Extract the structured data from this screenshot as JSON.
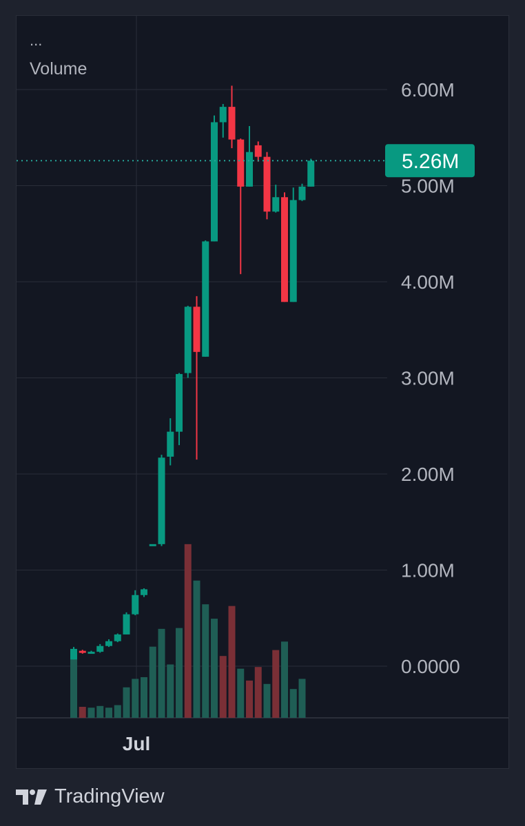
{
  "legend": {
    "dots": "...",
    "title": "Volume"
  },
  "brand": {
    "name": "TradingView",
    "logo_icon": "tradingview-logo-icon"
  },
  "colors": {
    "background": "#131722",
    "outer": "#1e222d",
    "grid": "#2a2e39",
    "up": "#089981",
    "down": "#f23645",
    "volume_up": "#1f5e55",
    "volume_down": "#7a2f36",
    "axis_text": "#b2b5be",
    "price_line": "#26a69a",
    "last_badge": "#089981"
  },
  "chart_data": {
    "type": "candlestick",
    "title": "",
    "y_axis": {
      "ticks": [
        6000000,
        5000000,
        4000000,
        3000000,
        2000000,
        1000000,
        0
      ],
      "tick_labels": [
        "6.00M",
        "5.00M",
        "4.00M",
        "3.00M",
        "2.00M",
        "1.00M",
        "0.0000"
      ],
      "ylim": [
        -540000,
        6240000
      ],
      "position": "right"
    },
    "x_axis": {
      "tick_labels": [
        "Jul"
      ]
    },
    "grid": true,
    "last_value": 5260000,
    "last_value_label": "5.26M",
    "candles": [
      {
        "o": 70000,
        "h": 200000,
        "l": 70000,
        "c": 180000
      },
      {
        "o": 160000,
        "h": 170000,
        "l": 130000,
        "c": 140000
      },
      {
        "o": 140000,
        "h": 160000,
        "l": 130000,
        "c": 150000
      },
      {
        "o": 150000,
        "h": 230000,
        "l": 140000,
        "c": 210000
      },
      {
        "o": 210000,
        "h": 280000,
        "l": 200000,
        "c": 260000
      },
      {
        "o": 260000,
        "h": 340000,
        "l": 250000,
        "c": 330000
      },
      {
        "o": 330000,
        "h": 560000,
        "l": 330000,
        "c": 540000
      },
      {
        "o": 540000,
        "h": 790000,
        "l": 530000,
        "c": 740000
      },
      {
        "o": 740000,
        "h": 810000,
        "l": 720000,
        "c": 800000
      },
      {
        "o": 1270000,
        "h": 1270000,
        "l": 1270000,
        "c": 1270000
      },
      {
        "o": 1270000,
        "h": 2200000,
        "l": 1250000,
        "c": 2170000
      },
      {
        "o": 2180000,
        "h": 2580000,
        "l": 2090000,
        "c": 2440000
      },
      {
        "o": 2440000,
        "h": 3050000,
        "l": 2300000,
        "c": 3040000
      },
      {
        "o": 3050000,
        "h": 3750000,
        "l": 3000000,
        "c": 3740000
      },
      {
        "o": 3740000,
        "h": 3850000,
        "l": 2150000,
        "c": 3270000
      },
      {
        "o": 3220000,
        "h": 4430000,
        "l": 3220000,
        "c": 4420000
      },
      {
        "o": 4420000,
        "h": 5730000,
        "l": 4420000,
        "c": 5660000
      },
      {
        "o": 5660000,
        "h": 5850000,
        "l": 5500000,
        "c": 5820000
      },
      {
        "o": 5820000,
        "h": 6040000,
        "l": 5390000,
        "c": 5480000
      },
      {
        "o": 5480000,
        "h": 5490000,
        "l": 4080000,
        "c": 4990000
      },
      {
        "o": 4990000,
        "h": 5620000,
        "l": 4990000,
        "c": 5350000
      },
      {
        "o": 5420000,
        "h": 5460000,
        "l": 5250000,
        "c": 5300000
      },
      {
        "o": 5300000,
        "h": 5350000,
        "l": 4650000,
        "c": 4730000
      },
      {
        "o": 4730000,
        "h": 5010000,
        "l": 4720000,
        "c": 4880000
      },
      {
        "o": 4880000,
        "h": 4930000,
        "l": 3790000,
        "c": 3790000
      },
      {
        "o": 3790000,
        "h": 4980000,
        "l": 3790000,
        "c": 4850000
      },
      {
        "o": 4850000,
        "h": 5020000,
        "l": 4840000,
        "c": 4990000
      },
      {
        "o": 4990000,
        "h": 5280000,
        "l": 4990000,
        "c": 5260000
      }
    ],
    "volume": [
      {
        "v": 0.74,
        "dir": "up"
      },
      {
        "v": 0.13,
        "dir": "down"
      },
      {
        "v": 0.12,
        "dir": "up"
      },
      {
        "v": 0.14,
        "dir": "up"
      },
      {
        "v": 0.12,
        "dir": "up"
      },
      {
        "v": 0.15,
        "dir": "up"
      },
      {
        "v": 0.36,
        "dir": "up"
      },
      {
        "v": 0.46,
        "dir": "up"
      },
      {
        "v": 0.48,
        "dir": "up"
      },
      {
        "v": 0.84,
        "dir": "up"
      },
      {
        "v": 1.05,
        "dir": "up"
      },
      {
        "v": 0.63,
        "dir": "up"
      },
      {
        "v": 1.06,
        "dir": "up"
      },
      {
        "v": 2.05,
        "dir": "down"
      },
      {
        "v": 1.62,
        "dir": "up"
      },
      {
        "v": 1.34,
        "dir": "up"
      },
      {
        "v": 1.17,
        "dir": "up"
      },
      {
        "v": 0.73,
        "dir": "down"
      },
      {
        "v": 1.32,
        "dir": "down"
      },
      {
        "v": 0.58,
        "dir": "up"
      },
      {
        "v": 0.44,
        "dir": "down"
      },
      {
        "v": 0.6,
        "dir": "down"
      },
      {
        "v": 0.4,
        "dir": "up"
      },
      {
        "v": 0.8,
        "dir": "down"
      },
      {
        "v": 0.9,
        "dir": "up"
      },
      {
        "v": 0.34,
        "dir": "up"
      },
      {
        "v": 0.46,
        "dir": "up"
      }
    ]
  }
}
